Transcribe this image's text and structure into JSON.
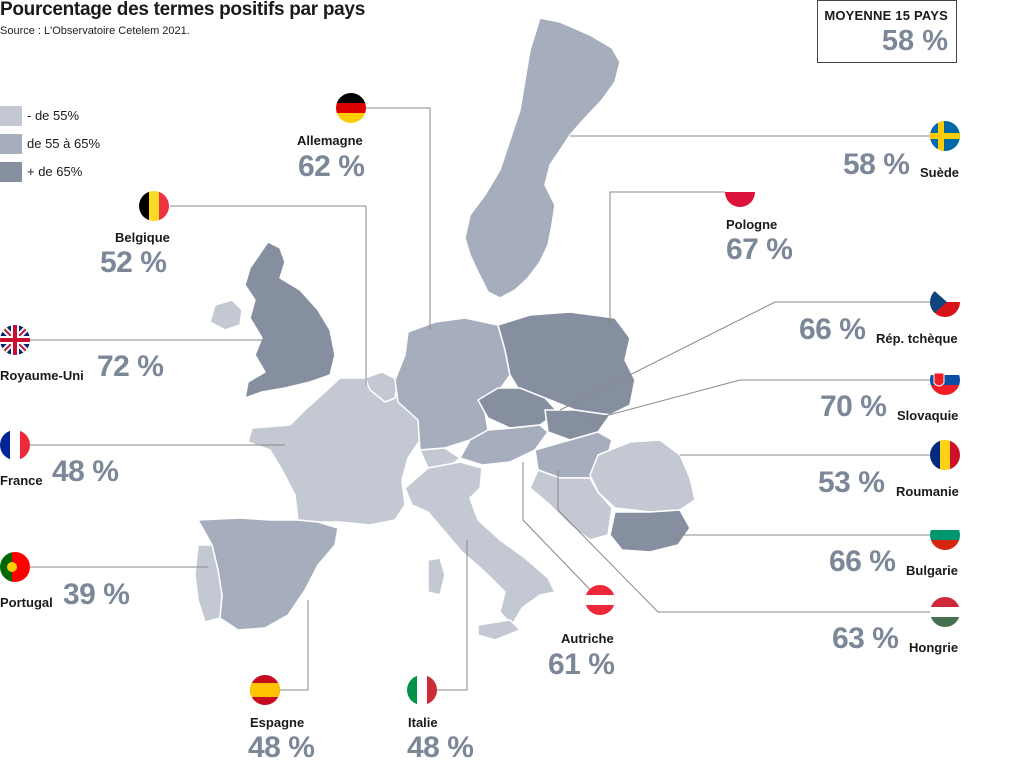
{
  "title": "Pourcentage des termes positifs par pays",
  "source": "Source : L'Observatoire Cetelem 2021.",
  "average": {
    "label": "MOYENNE 15 PAYS",
    "value": "58 %"
  },
  "legend": [
    {
      "label": "- de 55%",
      "color": "#c3c8d3"
    },
    {
      "label": "de 55 à 65%",
      "color": "#a6aebd"
    },
    {
      "label": "+ de 65%",
      "color": "#868fa0"
    }
  ],
  "countries": {
    "allemagne": {
      "name": "Allemagne",
      "value": "62 %"
    },
    "belgique": {
      "name": "Belgique",
      "value": "52 %"
    },
    "royaume_uni": {
      "name": "Royaume-Uni",
      "value": "72 %"
    },
    "france": {
      "name": "France",
      "value": "48 %"
    },
    "portugal": {
      "name": "Portugal",
      "value": "39 %"
    },
    "espagne": {
      "name": "Espagne",
      "value": "48 %"
    },
    "italie": {
      "name": "Italie",
      "value": "48 %"
    },
    "autriche": {
      "name": "Autriche",
      "value": "61 %"
    },
    "pologne": {
      "name": "Pologne",
      "value": "67 %"
    },
    "suede": {
      "name": "Suède",
      "value": "58 %"
    },
    "rep_tcheque": {
      "name": "Rép. tchèque",
      "value": "66 %"
    },
    "slovaquie": {
      "name": "Slovaquie",
      "value": "70 %"
    },
    "roumanie": {
      "name": "Roumanie",
      "value": "53 %"
    },
    "bulgarie": {
      "name": "Bulgarie",
      "value": "66 %"
    },
    "hongrie": {
      "name": "Hongrie",
      "value": "63 %"
    }
  }
}
